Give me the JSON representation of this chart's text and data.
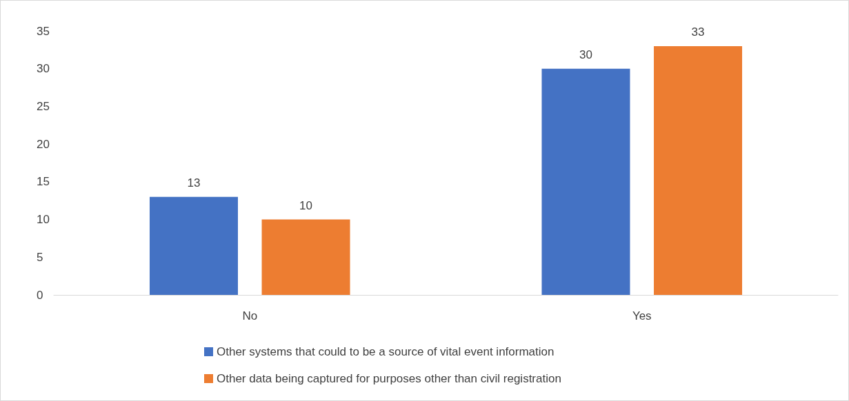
{
  "chart_data": {
    "type": "bar",
    "categories": [
      "No",
      "Yes"
    ],
    "series": [
      {
        "name": "Other systems that could to be a source of vital event information",
        "color": "#4472c4",
        "values": [
          13,
          30
        ]
      },
      {
        "name": "Other data being captured for purposes other than civil registration",
        "color": "#ed7d31",
        "values": [
          10,
          33
        ]
      }
    ],
    "ylim": [
      0,
      35
    ],
    "yticks": [
      0,
      5,
      10,
      15,
      20,
      25,
      30,
      35
    ],
    "grid": false,
    "legend": "bottom",
    "data_labels": true
  }
}
